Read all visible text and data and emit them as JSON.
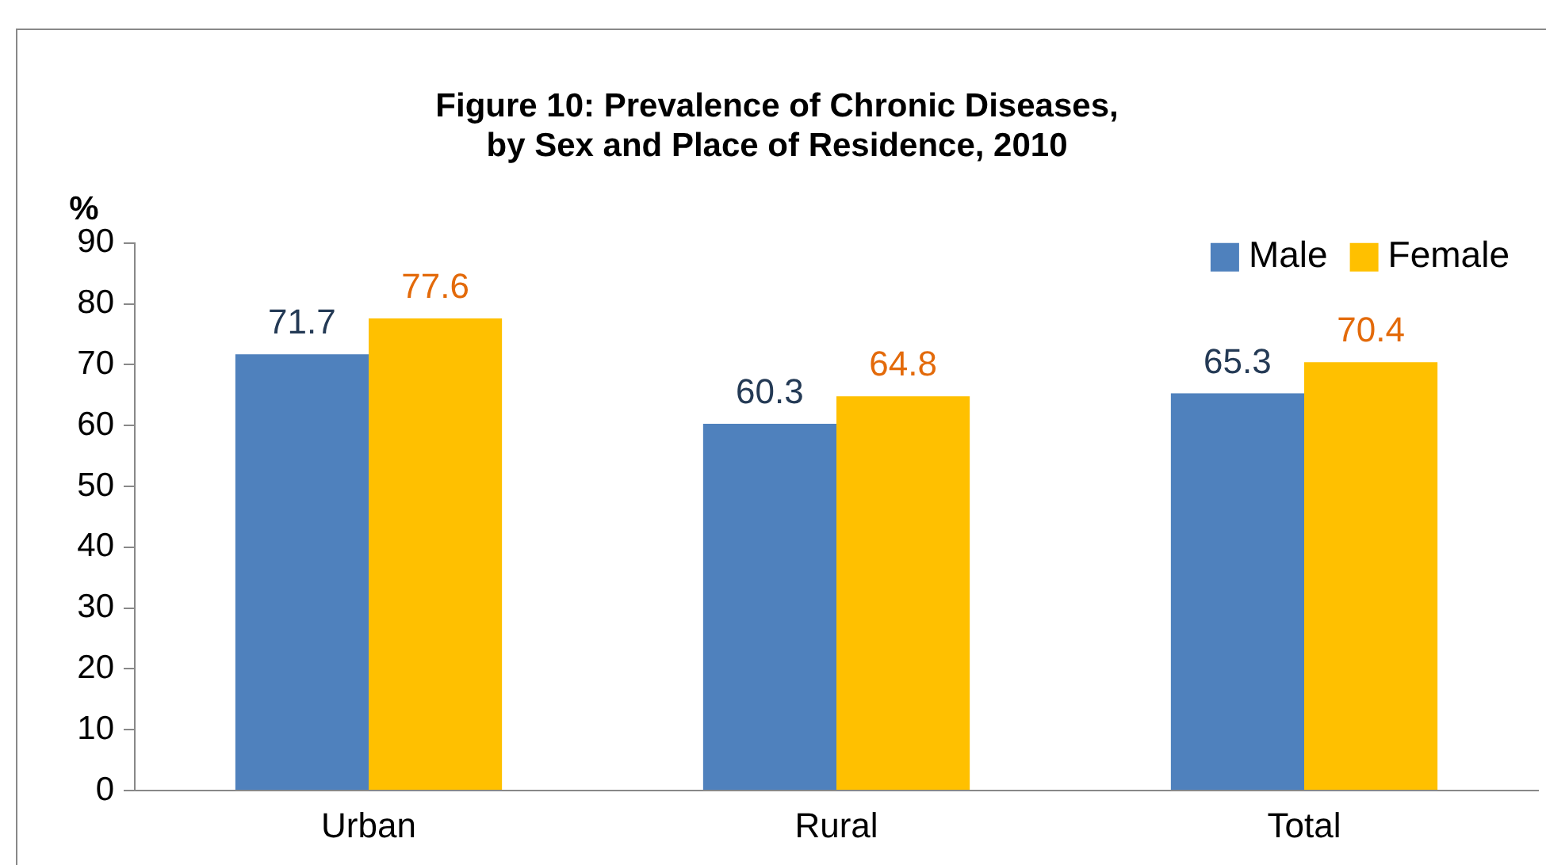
{
  "chart_data": {
    "type": "bar",
    "title": "Figure 10: Prevalence of Chronic Diseases,\nby Sex and Place of Residence, 2010",
    "ylabel": "%",
    "categories": [
      "Urban",
      "Rural",
      "Total"
    ],
    "series": [
      {
        "name": "Male",
        "color": "#4f81bd",
        "values": [
          71.7,
          60.3,
          65.3
        ]
      },
      {
        "name": "Female",
        "color": "#ffc000",
        "values": [
          77.6,
          64.8,
          70.4
        ]
      }
    ],
    "ylim": [
      0,
      90
    ],
    "yticks": [
      0,
      10,
      20,
      30,
      40,
      50,
      60,
      70,
      80,
      90
    ],
    "grid": false,
    "legend": "top right",
    "data_labels": true
  }
}
